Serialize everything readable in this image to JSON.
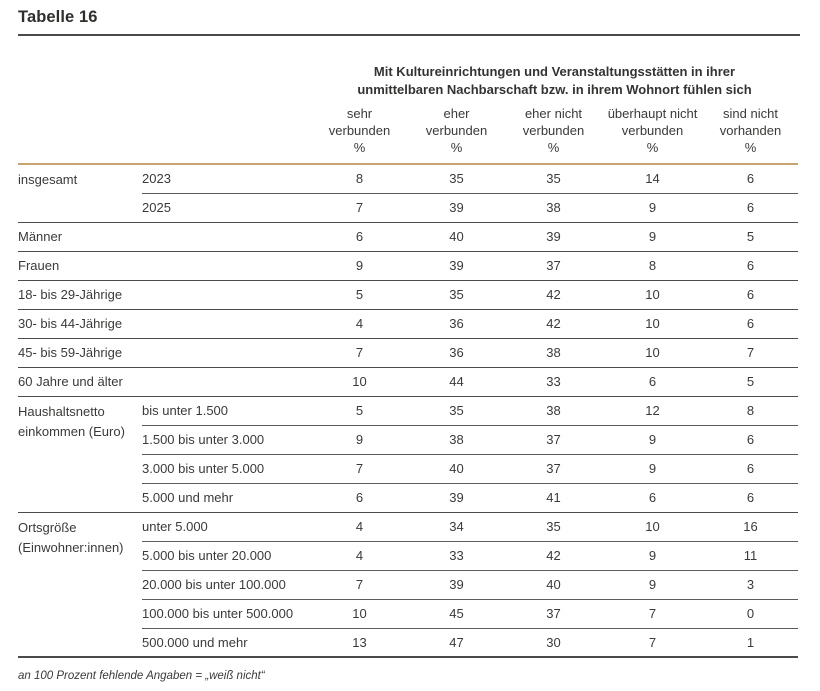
{
  "page_title": "Tabelle 16",
  "colors": {
    "accent_rule": "#c8a36e",
    "dark_rule": "#4b4b4a",
    "text": "#3a3a39"
  },
  "header": {
    "question_line1": "Mit Kultureinrichtungen und Veranstaltungsstätten in ihrer",
    "question_line2": "unmittelbaren Nachbarschaft bzw. in ihrem Wohnort fühlen sich",
    "columns": [
      {
        "line1": "sehr",
        "line2": "verbunden",
        "unit": "%"
      },
      {
        "line1": "eher",
        "line2": "verbunden",
        "unit": "%"
      },
      {
        "line1": "eher nicht",
        "line2": "verbunden",
        "unit": "%"
      },
      {
        "line1": "überhaupt nicht",
        "line2": "verbunden",
        "unit": "%"
      },
      {
        "line1": "sind nicht",
        "line2": "vorhanden",
        "unit": "%"
      }
    ]
  },
  "table": {
    "groups": [
      {
        "label": "insgesamt",
        "label2": "",
        "rows": [
          {
            "sub": "2023",
            "values": [
              "8",
              "35",
              "35",
              "14",
              "6"
            ]
          },
          {
            "sub": "2025",
            "values": [
              "7",
              "39",
              "38",
              "9",
              "6"
            ]
          }
        ]
      },
      {
        "label": "Männer",
        "rows": [
          {
            "sub": "",
            "values": [
              "6",
              "40",
              "39",
              "9",
              "5"
            ]
          }
        ]
      },
      {
        "label": "Frauen",
        "rows": [
          {
            "sub": "",
            "values": [
              "9",
              "39",
              "37",
              "8",
              "6"
            ]
          }
        ]
      },
      {
        "label": "18- bis 29-Jährige",
        "rows": [
          {
            "sub": "",
            "values": [
              "5",
              "35",
              "42",
              "10",
              "6"
            ]
          }
        ]
      },
      {
        "label": "30- bis 44-Jährige",
        "rows": [
          {
            "sub": "",
            "values": [
              "4",
              "36",
              "42",
              "10",
              "6"
            ]
          }
        ]
      },
      {
        "label": "45- bis 59-Jährige",
        "rows": [
          {
            "sub": "",
            "values": [
              "7",
              "36",
              "38",
              "10",
              "7"
            ]
          }
        ]
      },
      {
        "label": "60 Jahre und älter",
        "rows": [
          {
            "sub": "",
            "values": [
              "10",
              "44",
              "33",
              "6",
              "5"
            ]
          }
        ]
      },
      {
        "label": "Haushaltsnetto",
        "label2": "einkommen (Euro)",
        "rows": [
          {
            "sub": "bis unter 1.500",
            "values": [
              "5",
              "35",
              "38",
              "12",
              "8"
            ]
          },
          {
            "sub": "1.500 bis unter 3.000",
            "values": [
              "9",
              "38",
              "37",
              "9",
              "6"
            ]
          },
          {
            "sub": "3.000 bis unter 5.000",
            "values": [
              "7",
              "40",
              "37",
              "9",
              "6"
            ]
          },
          {
            "sub": "5.000 und mehr",
            "values": [
              "6",
              "39",
              "41",
              "6",
              "6"
            ]
          }
        ]
      },
      {
        "label": "Ortsgröße",
        "label2": "(Einwohner:innen)",
        "rows": [
          {
            "sub": "unter 5.000",
            "values": [
              "4",
              "34",
              "35",
              "10",
              "16"
            ]
          },
          {
            "sub": "5.000 bis unter 20.000",
            "values": [
              "4",
              "33",
              "42",
              "9",
              "11"
            ]
          },
          {
            "sub": "20.000 bis unter 100.000",
            "values": [
              "7",
              "39",
              "40",
              "9",
              "3"
            ]
          },
          {
            "sub": "100.000 bis unter 500.000",
            "values": [
              "10",
              "45",
              "37",
              "7",
              "0"
            ]
          },
          {
            "sub": "500.000 und mehr",
            "values": [
              "13",
              "47",
              "30",
              "7",
              "1"
            ]
          }
        ]
      }
    ]
  },
  "footnote": "an 100 Prozent fehlende Angaben = „weiß nicht“"
}
